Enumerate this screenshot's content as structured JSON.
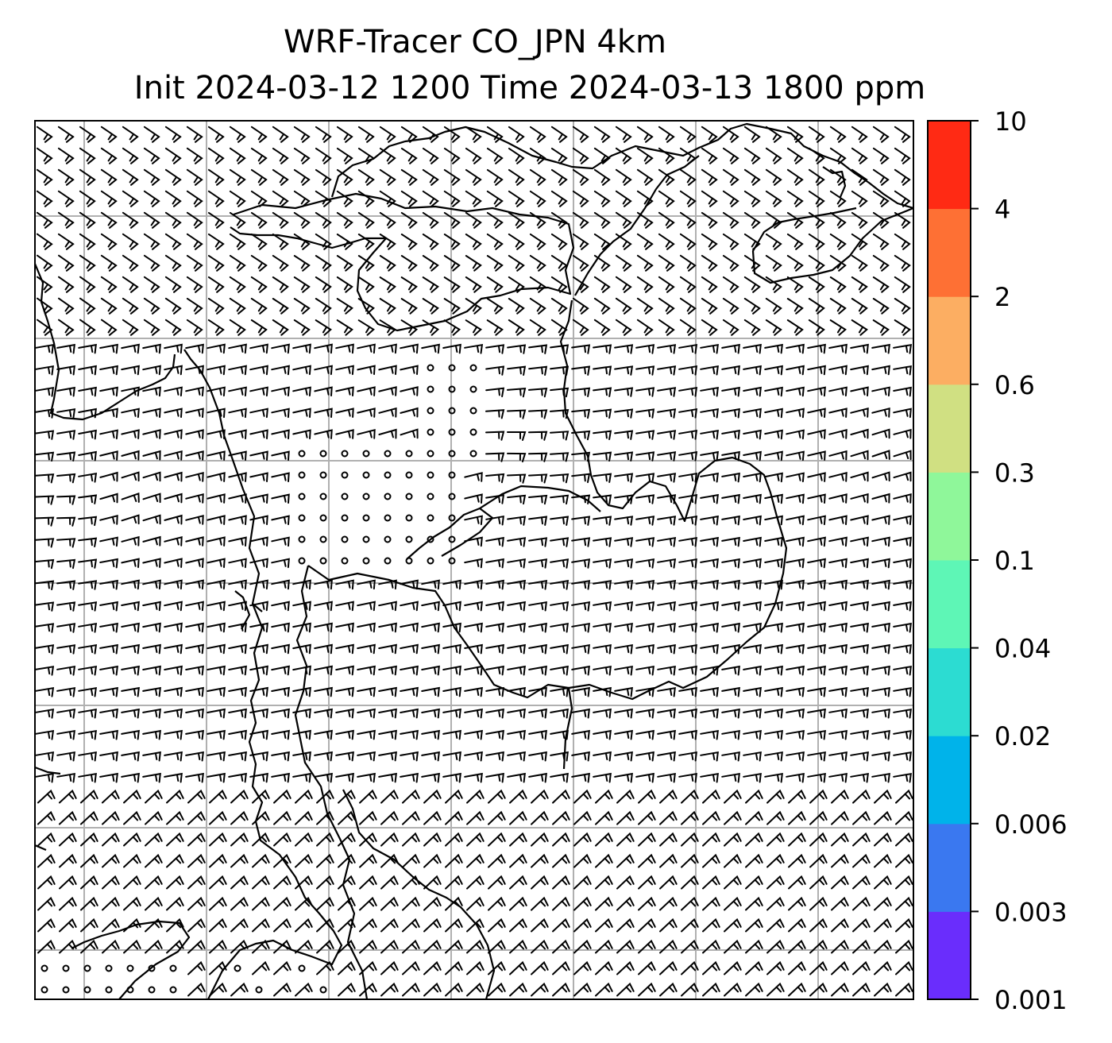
{
  "chart_data": {
    "type": "heatmap",
    "title_line1": "WRF-Tracer CO_JPN 4km",
    "title_line2": "Init 2024-03-12 1200 Time 2024-03-13 1800 ppm",
    "grid": true,
    "overlay": "wind barbs",
    "colorbar": {
      "position": "right",
      "levels": [
        "0.001",
        "0.003",
        "0.006",
        "0.02",
        "0.04",
        "0.1",
        "0.3",
        "0.6",
        "2",
        "4",
        "10"
      ],
      "colors": [
        "#6a2dfc",
        "#3a78f0",
        "#00b3ea",
        "#2cdcd2",
        "#5ef6b6",
        "#8ff79a",
        "#d0e082",
        "#fcae62",
        "#fe7034",
        "#ff2a14"
      ]
    }
  }
}
